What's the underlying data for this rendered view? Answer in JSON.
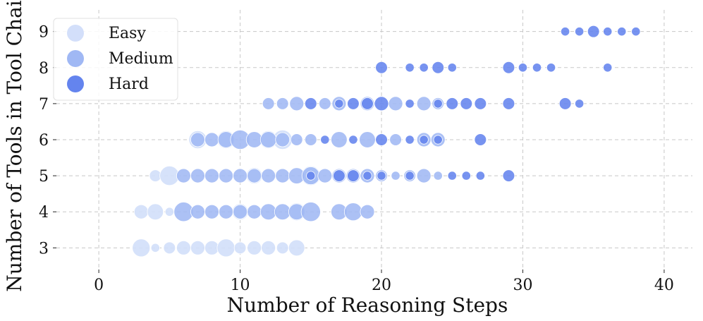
{
  "chart_data": {
    "type": "scatter",
    "xlabel": "Number of Reasoning Steps",
    "ylabel": "Number of Tools in Tool Chain",
    "xlim": [
      -3,
      42
    ],
    "ylim": [
      2.4,
      9.6
    ],
    "xticks": [
      0,
      10,
      20,
      30,
      40
    ],
    "yticks": [
      3,
      4,
      5,
      6,
      7,
      8,
      9
    ],
    "grid": true,
    "legend_position": "top-left",
    "series": [
      {
        "name": "Easy",
        "color": "#d3dffa",
        "points": [
          {
            "x": 3,
            "y": 3,
            "size": 5
          },
          {
            "x": 4,
            "y": 3,
            "size": 1
          },
          {
            "x": 5,
            "y": 3,
            "size": 2
          },
          {
            "x": 6,
            "y": 3,
            "size": 3
          },
          {
            "x": 7,
            "y": 3,
            "size": 3
          },
          {
            "x": 8,
            "y": 3,
            "size": 3
          },
          {
            "x": 9,
            "y": 3,
            "size": 5
          },
          {
            "x": 10,
            "y": 3,
            "size": 2
          },
          {
            "x": 11,
            "y": 3,
            "size": 3
          },
          {
            "x": 12,
            "y": 3,
            "size": 3
          },
          {
            "x": 13,
            "y": 3,
            "size": 2
          },
          {
            "x": 14,
            "y": 3,
            "size": 4
          },
          {
            "x": 3,
            "y": 4,
            "size": 3
          },
          {
            "x": 4,
            "y": 4,
            "size": 4
          },
          {
            "x": 5,
            "y": 4,
            "size": 1
          },
          {
            "x": 4,
            "y": 5,
            "size": 2
          },
          {
            "x": 5,
            "y": 5,
            "size": 6
          },
          {
            "x": 7,
            "y": 6,
            "size": 5
          },
          {
            "x": 9,
            "y": 6,
            "size": 5
          },
          {
            "x": 10,
            "y": 4,
            "size": 4
          },
          {
            "x": 11,
            "y": 5,
            "size": 4
          },
          {
            "x": 12,
            "y": 6,
            "size": 5
          },
          {
            "x": 13,
            "y": 6,
            "size": 6
          },
          {
            "x": 14,
            "y": 4,
            "size": 5
          },
          {
            "x": 15,
            "y": 5,
            "size": 6
          }
        ]
      },
      {
        "name": "Medium",
        "color": "#a0b8f4",
        "points": [
          {
            "x": 6,
            "y": 4,
            "size": 6
          },
          {
            "x": 7,
            "y": 4,
            "size": 3
          },
          {
            "x": 8,
            "y": 4,
            "size": 3
          },
          {
            "x": 9,
            "y": 4,
            "size": 3
          },
          {
            "x": 10,
            "y": 4,
            "size": 3
          },
          {
            "x": 11,
            "y": 4,
            "size": 3
          },
          {
            "x": 12,
            "y": 4,
            "size": 4
          },
          {
            "x": 13,
            "y": 4,
            "size": 4
          },
          {
            "x": 14,
            "y": 4,
            "size": 4
          },
          {
            "x": 15,
            "y": 4,
            "size": 6
          },
          {
            "x": 17,
            "y": 4,
            "size": 4
          },
          {
            "x": 18,
            "y": 4,
            "size": 5
          },
          {
            "x": 19,
            "y": 4,
            "size": 3
          },
          {
            "x": 6,
            "y": 5,
            "size": 3
          },
          {
            "x": 7,
            "y": 5,
            "size": 3
          },
          {
            "x": 8,
            "y": 5,
            "size": 3
          },
          {
            "x": 9,
            "y": 5,
            "size": 3
          },
          {
            "x": 10,
            "y": 5,
            "size": 3
          },
          {
            "x": 11,
            "y": 5,
            "size": 3
          },
          {
            "x": 12,
            "y": 5,
            "size": 3
          },
          {
            "x": 13,
            "y": 5,
            "size": 3
          },
          {
            "x": 14,
            "y": 5,
            "size": 4
          },
          {
            "x": 15,
            "y": 5,
            "size": 5
          },
          {
            "x": 16,
            "y": 5,
            "size": 3
          },
          {
            "x": 17,
            "y": 5,
            "size": 3
          },
          {
            "x": 18,
            "y": 5,
            "size": 3
          },
          {
            "x": 19,
            "y": 5,
            "size": 3
          },
          {
            "x": 20,
            "y": 5,
            "size": 2
          },
          {
            "x": 21,
            "y": 5,
            "size": 1
          },
          {
            "x": 22,
            "y": 5,
            "size": 2
          },
          {
            "x": 23,
            "y": 5,
            "size": 3
          },
          {
            "x": 24,
            "y": 5,
            "size": 1
          },
          {
            "x": 7,
            "y": 6,
            "size": 3
          },
          {
            "x": 8,
            "y": 6,
            "size": 3
          },
          {
            "x": 9,
            "y": 6,
            "size": 4
          },
          {
            "x": 10,
            "y": 6,
            "size": 6
          },
          {
            "x": 11,
            "y": 6,
            "size": 4
          },
          {
            "x": 12,
            "y": 6,
            "size": 4
          },
          {
            "x": 13,
            "y": 6,
            "size": 3
          },
          {
            "x": 14,
            "y": 6,
            "size": 2
          },
          {
            "x": 15,
            "y": 6,
            "size": 2
          },
          {
            "x": 17,
            "y": 6,
            "size": 4
          },
          {
            "x": 19,
            "y": 6,
            "size": 4
          },
          {
            "x": 21,
            "y": 6,
            "size": 2
          },
          {
            "x": 23,
            "y": 6,
            "size": 3
          },
          {
            "x": 24,
            "y": 6,
            "size": 3
          },
          {
            "x": 12,
            "y": 7,
            "size": 2
          },
          {
            "x": 13,
            "y": 7,
            "size": 2
          },
          {
            "x": 14,
            "y": 7,
            "size": 3
          },
          {
            "x": 16,
            "y": 7,
            "size": 2
          },
          {
            "x": 17,
            "y": 7,
            "size": 3
          },
          {
            "x": 19,
            "y": 7,
            "size": 3
          },
          {
            "x": 21,
            "y": 7,
            "size": 3
          },
          {
            "x": 23,
            "y": 7,
            "size": 3
          },
          {
            "x": 24,
            "y": 7,
            "size": 2
          }
        ]
      },
      {
        "name": "Hard",
        "color": "#6484ee",
        "points": [
          {
            "x": 15,
            "y": 5,
            "size": 1
          },
          {
            "x": 17,
            "y": 5,
            "size": 2
          },
          {
            "x": 18,
            "y": 5,
            "size": 2
          },
          {
            "x": 19,
            "y": 5,
            "size": 1
          },
          {
            "x": 20,
            "y": 5,
            "size": 1
          },
          {
            "x": 22,
            "y": 5,
            "size": 1
          },
          {
            "x": 25,
            "y": 5,
            "size": 1
          },
          {
            "x": 26,
            "y": 5,
            "size": 1
          },
          {
            "x": 27,
            "y": 5,
            "size": 1
          },
          {
            "x": 29,
            "y": 5,
            "size": 2
          },
          {
            "x": 16,
            "y": 6,
            "size": 1
          },
          {
            "x": 18,
            "y": 6,
            "size": 1
          },
          {
            "x": 20,
            "y": 6,
            "size": 2
          },
          {
            "x": 22,
            "y": 6,
            "size": 1
          },
          {
            "x": 23,
            "y": 6,
            "size": 1
          },
          {
            "x": 24,
            "y": 6,
            "size": 1
          },
          {
            "x": 27,
            "y": 6,
            "size": 2
          },
          {
            "x": 15,
            "y": 7,
            "size": 2
          },
          {
            "x": 17,
            "y": 7,
            "size": 1
          },
          {
            "x": 18,
            "y": 7,
            "size": 2
          },
          {
            "x": 19,
            "y": 7,
            "size": 2
          },
          {
            "x": 20,
            "y": 7,
            "size": 3
          },
          {
            "x": 22,
            "y": 7,
            "size": 1
          },
          {
            "x": 24,
            "y": 7,
            "size": 1
          },
          {
            "x": 25,
            "y": 7,
            "size": 2
          },
          {
            "x": 26,
            "y": 7,
            "size": 2
          },
          {
            "x": 27,
            "y": 7,
            "size": 2
          },
          {
            "x": 29,
            "y": 7,
            "size": 2
          },
          {
            "x": 33,
            "y": 7,
            "size": 2
          },
          {
            "x": 34,
            "y": 7,
            "size": 1
          },
          {
            "x": 20,
            "y": 8,
            "size": 2
          },
          {
            "x": 22,
            "y": 8,
            "size": 1
          },
          {
            "x": 23,
            "y": 8,
            "size": 1
          },
          {
            "x": 24,
            "y": 8,
            "size": 2
          },
          {
            "x": 25,
            "y": 8,
            "size": 1
          },
          {
            "x": 29,
            "y": 8,
            "size": 2
          },
          {
            "x": 30,
            "y": 8,
            "size": 1
          },
          {
            "x": 31,
            "y": 8,
            "size": 1
          },
          {
            "x": 32,
            "y": 8,
            "size": 1
          },
          {
            "x": 36,
            "y": 8,
            "size": 1
          },
          {
            "x": 33,
            "y": 9,
            "size": 1
          },
          {
            "x": 34,
            "y": 9,
            "size": 1
          },
          {
            "x": 35,
            "y": 9,
            "size": 2
          },
          {
            "x": 36,
            "y": 9,
            "size": 1
          },
          {
            "x": 37,
            "y": 9,
            "size": 1
          },
          {
            "x": 38,
            "y": 9,
            "size": 1
          }
        ]
      }
    ]
  }
}
